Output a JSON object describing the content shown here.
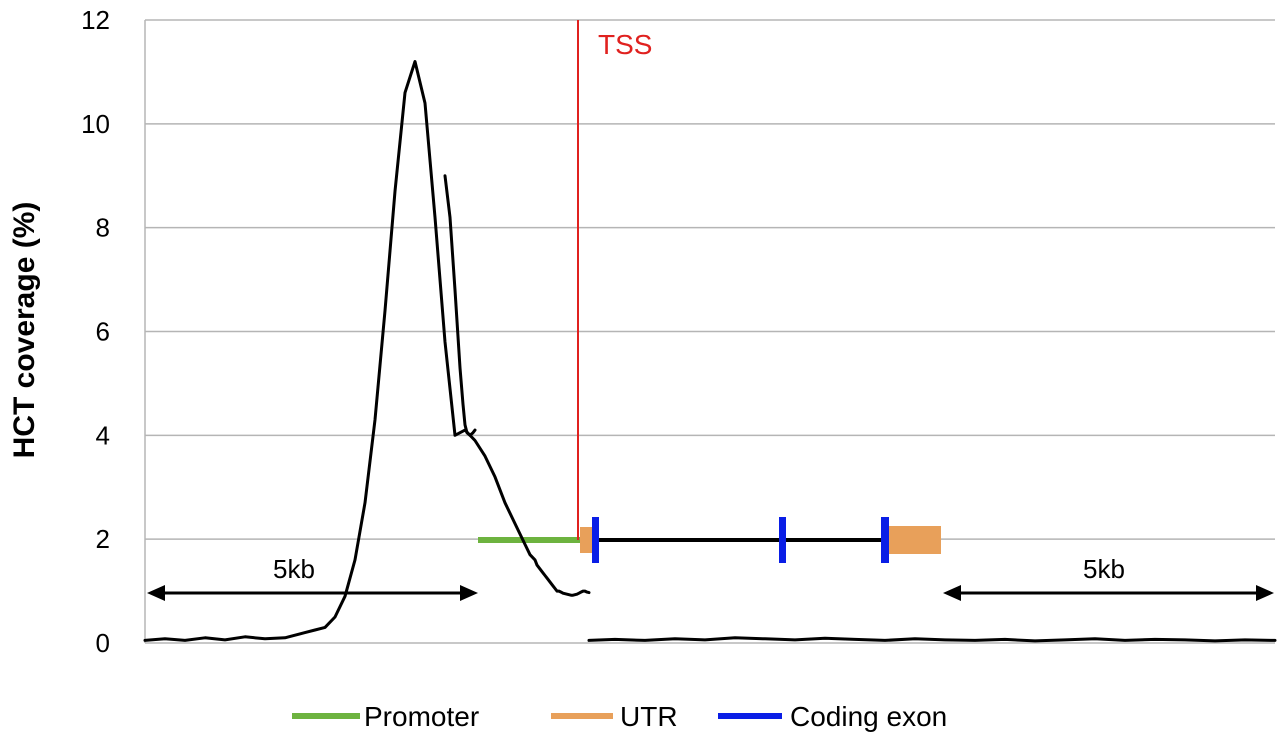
{
  "chart_data": {
    "type": "line",
    "ylabel": "HCT coverage (%)",
    "xlabel": "",
    "ylim": [
      0,
      12
    ],
    "yticks": [
      "0",
      "2",
      "4",
      "6",
      "8",
      "10",
      "12"
    ],
    "grid": true,
    "tss_label": "TSS",
    "span_labels": {
      "left": "5kb",
      "right": "5kb"
    },
    "legend": {
      "placement": "bottom",
      "items": [
        {
          "label": "Promoter",
          "color": "#6db33f"
        },
        {
          "label": "UTR",
          "color": "#e8a05a"
        },
        {
          "label": "Coding exon",
          "color": "#0a1ee6"
        }
      ]
    },
    "colors": {
      "curve": "#000000",
      "tss": "#e0211f",
      "gene": "#000000",
      "grid": "#b5b5b5"
    },
    "series": [
      {
        "x": [
          0,
          20,
          40,
          60,
          80,
          100,
          120,
          140,
          150,
          160,
          170,
          180,
          190,
          200,
          210,
          220,
          230,
          240,
          250,
          260,
          270,
          280,
          290,
          300,
          310,
          320,
          330,
          340,
          350,
          360,
          370,
          380,
          385,
          390,
          392,
          394,
          396,
          398,
          400,
          402,
          404,
          406,
          408,
          410,
          412,
          414,
          416,
          418,
          420,
          422,
          424,
          426,
          428,
          430,
          432,
          434,
          436,
          438,
          440,
          442,
          444
        ],
        "y": [
          0.05,
          0.08,
          0.05,
          0.1,
          0.06,
          0.12,
          0.08,
          0.1,
          0.15,
          0.2,
          0.25,
          0.3,
          0.5,
          0.9,
          1.6,
          2.7,
          4.3,
          6.4,
          8.7,
          10.6,
          11.2,
          10.4,
          8.2,
          5.8,
          4.0,
          4.1,
          3.9,
          3.6,
          3.2,
          2.7,
          2.3,
          1.9,
          1.7,
          1.6,
          1.5,
          1.45,
          1.4,
          1.35,
          1.3,
          1.25,
          1.2,
          1.15,
          1.1,
          1.05,
          1.0,
          1.0,
          0.98,
          0.96,
          0.95,
          0.94,
          0.93,
          0.92,
          0.92,
          0.93,
          0.94,
          0.96,
          0.98,
          1.0,
          1.0,
          0.98,
          0.97
        ]
      },
      {
        "x": [
          300,
          305,
          310,
          315,
          318,
          320,
          322,
          325,
          328,
          330
        ],
        "y": [
          9.0,
          8.2,
          6.8,
          5.3,
          4.6,
          4.2,
          4.05,
          4.0,
          4.05,
          4.1
        ]
      },
      {
        "x": [
          444,
          470,
          500,
          530,
          560,
          590,
          620,
          650,
          680,
          710,
          740,
          770,
          800,
          830,
          860,
          890,
          920,
          950,
          980,
          1010,
          1040,
          1070,
          1100,
          1130
        ],
        "y": [
          0.05,
          0.07,
          0.05,
          0.08,
          0.06,
          0.1,
          0.08,
          0.06,
          0.09,
          0.07,
          0.05,
          0.08,
          0.06,
          0.05,
          0.07,
          0.04,
          0.06,
          0.08,
          0.05,
          0.07,
          0.06,
          0.04,
          0.06,
          0.05
        ]
      }
    ]
  }
}
